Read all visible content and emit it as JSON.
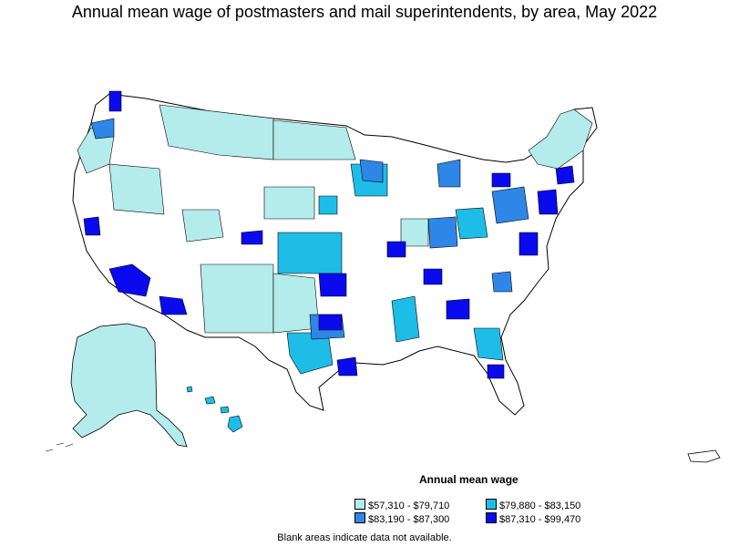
{
  "title": "Annual mean wage of postmasters and mail superintendents, by area, May 2022",
  "legend": {
    "title": "Annual mean wage",
    "items": [
      {
        "label": "$57,310 - $79,710",
        "color": "#b4ecec"
      },
      {
        "label": "$79,880 - $83,150",
        "color": "#1ebde8"
      },
      {
        "label": "$83,190 - $87,300",
        "color": "#2e86e6"
      },
      {
        "label": "$87,310 - $99,470",
        "color": "#0a0aee"
      }
    ]
  },
  "footnote": "Blank areas indicate data not available.",
  "colors": {
    "no_data": "#ffffff",
    "border": "#000000"
  }
}
